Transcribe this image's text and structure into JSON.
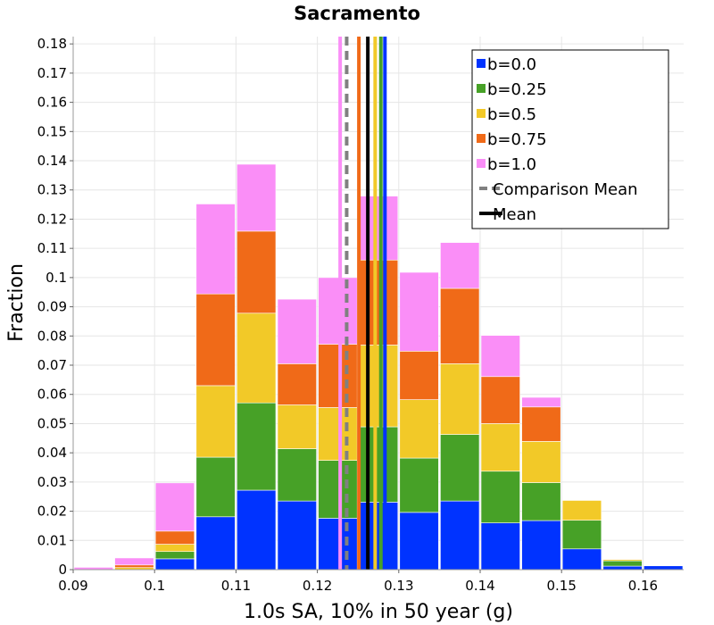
{
  "chart_data": {
    "type": "bar",
    "stacked": true,
    "title": "Sacramento",
    "xlabel": "1.0s SA, 10% in 50 year (g)",
    "ylabel": "Fraction",
    "xlim": [
      0.09,
      0.165
    ],
    "ylim": [
      0,
      0.1825
    ],
    "bin_width": 0.005,
    "bin_centers": [
      0.0925,
      0.0975,
      0.1025,
      0.1075,
      0.1125,
      0.1175,
      0.1225,
      0.1275,
      0.1325,
      0.1375,
      0.1425,
      0.1475,
      0.1525,
      0.1575,
      0.1625
    ],
    "x_ticks": [
      "0.09",
      "0.1",
      "0.11",
      "0.12",
      "0.13",
      "0.14",
      "0.15",
      "0.16"
    ],
    "x_tick_values": [
      0.09,
      0.1,
      0.11,
      0.12,
      0.13,
      0.14,
      0.15,
      0.16
    ],
    "y_ticks": [
      "0",
      "0.01",
      "0.02",
      "0.03",
      "0.04",
      "0.05",
      "0.06",
      "0.07",
      "0.08",
      "0.09",
      "0.1",
      "0.11",
      "0.12",
      "0.13",
      "0.14",
      "0.15",
      "0.16",
      "0.17",
      "0.18"
    ],
    "y_tick_values": [
      0,
      0.01,
      0.02,
      0.03,
      0.04,
      0.05,
      0.06,
      0.07,
      0.08,
      0.09,
      0.1,
      0.11,
      0.12,
      0.13,
      0.14,
      0.15,
      0.16,
      0.17,
      0.18
    ],
    "series": [
      {
        "name": "b=0.0",
        "color": "#0033ff",
        "values": [
          0.0,
          0.0,
          0.0037,
          0.0181,
          0.0272,
          0.0235,
          0.0176,
          0.0231,
          0.0196,
          0.0235,
          0.016,
          0.0168,
          0.0071,
          0.0012,
          0.0013
        ]
      },
      {
        "name": "b=0.25",
        "color": "#47a127",
        "values": [
          0.0,
          0.0,
          0.0025,
          0.0204,
          0.0299,
          0.0179,
          0.0198,
          0.0258,
          0.0186,
          0.0228,
          0.0177,
          0.013,
          0.0098,
          0.0018,
          0.0
        ]
      },
      {
        "name": "b=0.5",
        "color": "#f2c928",
        "values": [
          0.0,
          0.0007,
          0.0025,
          0.0245,
          0.0307,
          0.015,
          0.0181,
          0.028,
          0.02,
          0.0242,
          0.0163,
          0.0141,
          0.0068,
          0.0005,
          0.0
        ]
      },
      {
        "name": "b=0.75",
        "color": "#f06a18",
        "values": [
          0.0,
          0.0009,
          0.0045,
          0.0314,
          0.0281,
          0.0141,
          0.0217,
          0.0291,
          0.0166,
          0.0258,
          0.0161,
          0.0118,
          0.0,
          0.0001,
          0.0
        ]
      },
      {
        "name": "b=1.0",
        "color": "#fa8ef7",
        "values": [
          0.0008,
          0.0024,
          0.0165,
          0.0308,
          0.0229,
          0.0221,
          0.0228,
          0.0219,
          0.027,
          0.0157,
          0.0141,
          0.0033,
          0.0,
          0.0,
          0.0
        ]
      }
    ],
    "vertical_lines": [
      {
        "name": "b=0.0 mean",
        "x": 0.1283,
        "color": "#0033ff",
        "style": "solid"
      },
      {
        "name": "b=0.25 mean",
        "x": 0.1278,
        "color": "#47a127",
        "style": "solid"
      },
      {
        "name": "b=0.5 mean",
        "x": 0.1271,
        "color": "#f2c928",
        "style": "solid"
      },
      {
        "name": "b=0.75 mean",
        "x": 0.1251,
        "color": "#f06a18",
        "style": "solid"
      },
      {
        "name": "b=1.0 mean",
        "x": 0.1228,
        "color": "#fa8ef7",
        "style": "solid"
      },
      {
        "name": "Comparison Mean",
        "x": 0.1236,
        "color": "#808080",
        "style": "dashed"
      },
      {
        "name": "Mean",
        "x": 0.1262,
        "color": "#000000",
        "style": "solid"
      }
    ],
    "legend": {
      "position": "top-right",
      "entries": [
        {
          "label": "b=0.0",
          "kind": "box",
          "color": "#0033ff"
        },
        {
          "label": "b=0.25",
          "kind": "box",
          "color": "#47a127"
        },
        {
          "label": "b=0.5",
          "kind": "box",
          "color": "#f2c928"
        },
        {
          "label": "b=0.75",
          "kind": "box",
          "color": "#f06a18"
        },
        {
          "label": "b=1.0",
          "kind": "box",
          "color": "#fa8ef7"
        },
        {
          "label": "Comparison Mean",
          "kind": "dashed",
          "color": "#808080"
        },
        {
          "label": "Mean",
          "kind": "solid",
          "color": "#000000"
        }
      ]
    },
    "grid": true
  }
}
